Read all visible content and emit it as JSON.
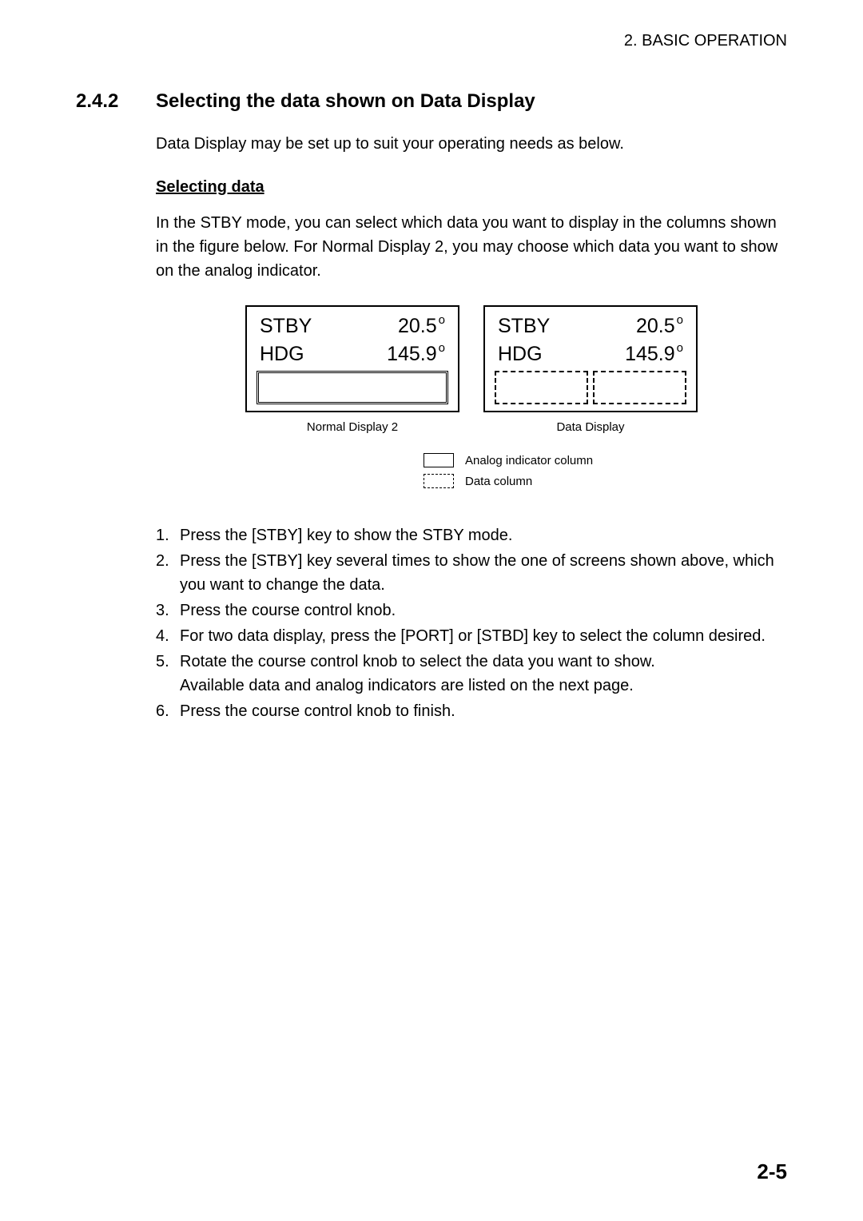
{
  "header": "2. BASIC OPERATION",
  "section": {
    "number": "2.4.2",
    "title": "Selecting the data shown on Data Display"
  },
  "intro": "Data Display may be set up to suit your operating needs as below.",
  "subheading": "Selecting data",
  "paragraph": "In the STBY mode, you can select which data you want to display in the columns shown in the figure below. For Normal Display 2, you may choose which data you want to show on the analog indicator.",
  "displays": {
    "left": {
      "line1_label": "STBY",
      "line1_value": "20.5",
      "line2_label": "HDG",
      "line2_value": "145.9",
      "caption": "Normal Display 2"
    },
    "right": {
      "line1_label": "STBY",
      "line1_value": "20.5",
      "line2_label": "HDG",
      "line2_value": "145.9",
      "caption": "Data Display"
    }
  },
  "legend": {
    "solid": "Analog indicator column",
    "dashed": "Data column"
  },
  "steps": {
    "s1": "Press the [STBY] key to show the STBY mode.",
    "s2": "Press the [STBY] key several times to show the one of screens shown above, which you want to change the data.",
    "s3": "Press the course control knob.",
    "s4": "For two data display, press the [PORT] or [STBD] key to select the column desired.",
    "s5a": "Rotate the course control knob to select the data you want to show.",
    "s5b": "Available data and analog indicators are listed on the next page.",
    "s6": "Press the course control knob to finish."
  },
  "pageNumber": "2-5"
}
